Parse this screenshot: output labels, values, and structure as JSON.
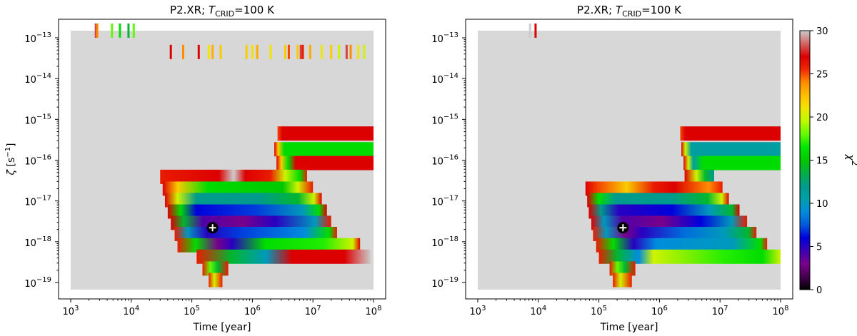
{
  "chart_data": [
    {
      "type": "heatmap",
      "title": "P2.XR; T_CRID=100 K",
      "title_main": "P2.XR; ",
      "title_sym": "T",
      "title_sub": "CRID",
      "title_tail": "=100 K",
      "xlabel": "Time [year]",
      "ylabel_sym": "ζ",
      "ylabel_unit": " [s",
      "ylabel_exp": "−1",
      "ylabel_close": "]",
      "x_scale": "log",
      "y_scale": "log",
      "xlim": [
        1000,
        100000000
      ],
      "ylim": [
        1e-19,
        1e-13
      ],
      "x_ticks": [
        {
          "base": "10",
          "exp": "3"
        },
        {
          "base": "10",
          "exp": "4"
        },
        {
          "base": "10",
          "exp": "5"
        },
        {
          "base": "10",
          "exp": "6"
        },
        {
          "base": "10",
          "exp": "7"
        },
        {
          "base": "10",
          "exp": "8"
        }
      ],
      "y_ticks": [
        {
          "base": "10",
          "exp": "−13"
        },
        {
          "base": "10",
          "exp": "−14"
        },
        {
          "base": "10",
          "exp": "−15"
        },
        {
          "base": "10",
          "exp": "−16"
        },
        {
          "base": "10",
          "exp": "−17"
        },
        {
          "base": "10",
          "exp": "−18"
        },
        {
          "base": "10",
          "exp": "−19"
        }
      ],
      "marker": {
        "x": 220000,
        "y": 2.2e-18,
        "symbol": "+"
      },
      "rows": [
        {
          "zeta": 1.5e-13,
          "t_start": 2500,
          "t_end": 12000,
          "style": "sparse",
          "stops": [
            [
              0,
              12
            ],
            [
              100,
              12
            ]
          ],
          "lines": [
            [
              2600,
              28
            ],
            [
              2750,
              24
            ],
            [
              4800,
              18
            ],
            [
              6500,
              16
            ],
            [
              9000,
              14
            ],
            [
              11000,
              18
            ]
          ]
        },
        {
          "zeta": 4.5e-14,
          "t_start": 40000,
          "t_end": 95000000,
          "style": "sparse",
          "stops": [
            [
              0,
              12
            ],
            [
              100,
              12
            ]
          ],
          "lines": [
            [
              45000,
              27
            ],
            [
              72000,
              24
            ],
            [
              130000,
              27
            ],
            [
              190000,
              21
            ],
            [
              220000,
              23
            ],
            [
              300000,
              22
            ],
            [
              800000,
              22
            ],
            [
              1000000,
              21
            ],
            [
              1200000,
              23
            ],
            [
              2000000,
              21
            ],
            [
              3500000,
              22
            ],
            [
              4000000,
              25
            ],
            [
              5600000,
              22
            ],
            [
              6300000,
              28
            ],
            [
              6800000,
              26
            ],
            [
              9000000,
              23
            ],
            [
              14000000,
              21
            ],
            [
              20000000,
              22
            ],
            [
              27000000,
              20
            ],
            [
              36000000,
              28
            ],
            [
              42000000,
              24
            ],
            [
              56000000,
              21
            ],
            [
              70000000,
              20
            ]
          ]
        },
        {
          "zeta": 4.5e-16,
          "t_start": 2600000,
          "t_end": 100000000,
          "stops": [
            [
              0,
              25
            ],
            [
              5,
              27
            ],
            [
              100,
              27
            ]
          ]
        },
        {
          "zeta": 1.85e-16,
          "t_start": 2300000,
          "t_end": 100000000,
          "stops": [
            [
              0,
              27
            ],
            [
              4,
              22
            ],
            [
              10,
              16
            ],
            [
              100,
              16
            ]
          ]
        },
        {
          "zeta": 8.5e-17,
          "t_start": 2500000,
          "t_end": 100000000,
          "stops": [
            [
              0,
              27
            ],
            [
              5,
              22
            ],
            [
              12,
              16
            ],
            [
              20,
              27
            ],
            [
              100,
              27
            ]
          ]
        },
        {
          "zeta": 3.9e-17,
          "t_start": 30000,
          "t_end": 8000000,
          "stops": [
            [
              0,
              26
            ],
            [
              40,
              27
            ],
            [
              50,
              30
            ],
            [
              58,
              27
            ],
            [
              75,
              26
            ],
            [
              85,
              20
            ],
            [
              95,
              16
            ],
            [
              100,
              26
            ]
          ]
        },
        {
          "zeta": 2e-17,
          "t_start": 33000,
          "t_end": 10000000,
          "stops": [
            [
              0,
              27
            ],
            [
              10,
              22
            ],
            [
              30,
              16
            ],
            [
              80,
              15
            ],
            [
              90,
              20
            ],
            [
              100,
              26
            ]
          ]
        },
        {
          "zeta": 1.05e-17,
          "t_start": 36000,
          "t_end": 14000000,
          "stops": [
            [
              0,
              27
            ],
            [
              8,
              20
            ],
            [
              20,
              12
            ],
            [
              60,
              12
            ],
            [
              85,
              14
            ],
            [
              95,
              20
            ],
            [
              100,
              27
            ]
          ]
        },
        {
          "zeta": 5.5e-18,
          "t_start": 40000,
          "t_end": 17000000,
          "stops": [
            [
              0,
              27
            ],
            [
              8,
              16
            ],
            [
              18,
              6
            ],
            [
              55,
              7
            ],
            [
              85,
              10
            ],
            [
              95,
              16
            ],
            [
              100,
              27
            ]
          ]
        },
        {
          "zeta": 2.9e-18,
          "t_start": 45000,
          "t_end": 20000000,
          "stops": [
            [
              0,
              27
            ],
            [
              8,
              14
            ],
            [
              20,
              4
            ],
            [
              45,
              3
            ],
            [
              65,
              5
            ],
            [
              90,
              10
            ],
            [
              100,
              26
            ]
          ]
        },
        {
          "zeta": 1.55e-18,
          "t_start": 52000,
          "t_end": 25000000,
          "stops": [
            [
              0,
              26
            ],
            [
              8,
              10
            ],
            [
              20,
              5
            ],
            [
              40,
              7
            ],
            [
              80,
              9
            ],
            [
              95,
              16
            ],
            [
              100,
              26
            ]
          ]
        },
        {
          "zeta": 8.2e-19,
          "t_start": 58000,
          "t_end": 60000000,
          "stops": [
            [
              0,
              26
            ],
            [
              10,
              16
            ],
            [
              22,
              3
            ],
            [
              30,
              5
            ],
            [
              48,
              16
            ],
            [
              80,
              17
            ],
            [
              96,
              20
            ],
            [
              100,
              27
            ]
          ]
        },
        {
          "zeta": 4.3e-19,
          "t_start": 120000,
          "t_end": 90000000,
          "stops": [
            [
              0,
              26
            ],
            [
              20,
              14
            ],
            [
              40,
              10
            ],
            [
              55,
              27
            ],
            [
              85,
              27
            ],
            [
              100,
              30
            ]
          ]
        },
        {
          "zeta": 2.2e-19,
          "t_start": 150000,
          "t_end": 400000,
          "stops": [
            [
              0,
              26
            ],
            [
              30,
              18
            ],
            [
              60,
              14
            ],
            [
              100,
              26
            ]
          ]
        },
        {
          "zeta": 1.15e-19,
          "t_start": 190000,
          "t_end": 320000,
          "stops": [
            [
              0,
              26
            ],
            [
              40,
              20
            ],
            [
              100,
              26
            ]
          ]
        }
      ]
    },
    {
      "type": "heatmap",
      "title": "P2.XR; T_CRID=100 K",
      "title_main": "P2.XR; ",
      "title_sym": "T",
      "title_sub": "CRID",
      "title_tail": "=100 K",
      "xlabel": "Time [year]",
      "x_scale": "log",
      "y_scale": "log",
      "xlim": [
        1000,
        100000000
      ],
      "ylim": [
        1e-19,
        1e-13
      ],
      "x_ticks": [
        {
          "base": "10",
          "exp": "3"
        },
        {
          "base": "10",
          "exp": "4"
        },
        {
          "base": "10",
          "exp": "5"
        },
        {
          "base": "10",
          "exp": "6"
        },
        {
          "base": "10",
          "exp": "7"
        },
        {
          "base": "10",
          "exp": "8"
        }
      ],
      "y_ticks": [
        {
          "base": "10",
          "exp": "−13"
        },
        {
          "base": "10",
          "exp": "−14"
        },
        {
          "base": "10",
          "exp": "−15"
        },
        {
          "base": "10",
          "exp": "−16"
        },
        {
          "base": "10",
          "exp": "−17"
        },
        {
          "base": "10",
          "exp": "−18"
        },
        {
          "base": "10",
          "exp": "−19"
        }
      ],
      "marker": {
        "x": 250000,
        "y": 2.2e-18,
        "symbol": "+"
      },
      "colorbar": {
        "label_sym": "χ",
        "label_exp": "2",
        "range": [
          0,
          30
        ],
        "ticks": [
          0,
          5,
          10,
          15,
          20,
          25,
          30
        ]
      },
      "rows": [
        {
          "zeta": 1.5e-13,
          "t_start": 7000,
          "t_end": 9500,
          "style": "sparse",
          "stops": [
            [
              0,
              12
            ],
            [
              100,
              12
            ]
          ],
          "lines": [
            [
              7300,
              30
            ],
            [
              9000,
              27
            ]
          ]
        },
        {
          "zeta": 4.5e-16,
          "t_start": 2200000,
          "t_end": 100000000,
          "stops": [
            [
              0,
              25
            ],
            [
              5,
              27
            ],
            [
              100,
              27
            ]
          ]
        },
        {
          "zeta": 1.85e-16,
          "t_start": 2300000,
          "t_end": 100000000,
          "stops": [
            [
              0,
              27
            ],
            [
              4,
              20
            ],
            [
              10,
              11
            ],
            [
              100,
              11
            ]
          ]
        },
        {
          "zeta": 8.5e-17,
          "t_start": 2500000,
          "t_end": 100000000,
          "stops": [
            [
              0,
              27
            ],
            [
              5,
              20
            ],
            [
              10,
              11
            ],
            [
              20,
              16
            ],
            [
              100,
              16
            ]
          ]
        },
        {
          "zeta": 3.9e-17,
          "t_start": 2600000,
          "t_end": 8000000,
          "stops": [
            [
              0,
              27
            ],
            [
              40,
              20
            ],
            [
              70,
              14
            ],
            [
              100,
              12
            ]
          ]
        },
        {
          "zeta": 2e-17,
          "t_start": 60000,
          "t_end": 11000000,
          "stops": [
            [
              0,
              27
            ],
            [
              10,
              25
            ],
            [
              30,
              22
            ],
            [
              50,
              26
            ],
            [
              65,
              27
            ],
            [
              90,
              24
            ],
            [
              100,
              26
            ]
          ]
        },
        {
          "zeta": 1.05e-17,
          "t_start": 64000,
          "t_end": 14000000,
          "stops": [
            [
              0,
              27
            ],
            [
              8,
              16
            ],
            [
              20,
              12
            ],
            [
              60,
              12
            ],
            [
              85,
              14
            ],
            [
              95,
              20
            ],
            [
              100,
              27
            ]
          ]
        },
        {
          "zeta": 5.5e-18,
          "t_start": 68000,
          "t_end": 21000000,
          "stops": [
            [
              0,
              27
            ],
            [
              8,
              12
            ],
            [
              20,
              5
            ],
            [
              55,
              6
            ],
            [
              80,
              10
            ],
            [
              95,
              14
            ],
            [
              100,
              27
            ]
          ]
        },
        {
          "zeta": 2.9e-18,
          "t_start": 75000,
          "t_end": 28000000,
          "stops": [
            [
              0,
              27
            ],
            [
              8,
              10
            ],
            [
              20,
              4
            ],
            [
              45,
              3
            ],
            [
              70,
              6
            ],
            [
              90,
              10
            ],
            [
              100,
              26
            ]
          ]
        },
        {
          "zeta": 1.55e-18,
          "t_start": 80000,
          "t_end": 40000000,
          "stops": [
            [
              0,
              26
            ],
            [
              8,
              10
            ],
            [
              20,
              3
            ],
            [
              30,
              5
            ],
            [
              55,
              8
            ],
            [
              80,
              10
            ],
            [
              95,
              14
            ],
            [
              100,
              26
            ]
          ]
        },
        {
          "zeta": 8.2e-19,
          "t_start": 90000,
          "t_end": 60000000,
          "stops": [
            [
              0,
              26
            ],
            [
              10,
              16
            ],
            [
              22,
              5
            ],
            [
              35,
              9
            ],
            [
              80,
              10
            ],
            [
              96,
              16
            ],
            [
              100,
              26
            ]
          ]
        },
        {
          "zeta": 4.3e-19,
          "t_start": 100000,
          "t_end": 100000000,
          "stops": [
            [
              0,
              26
            ],
            [
              10,
              14
            ],
            [
              22,
              9
            ],
            [
              30,
              20
            ],
            [
              70,
              17
            ],
            [
              90,
              16
            ],
            [
              100,
              20
            ]
          ]
        },
        {
          "zeta": 2.2e-19,
          "t_start": 150000,
          "t_end": 400000,
          "stops": [
            [
              0,
              26
            ],
            [
              30,
              18
            ],
            [
              60,
              14
            ],
            [
              100,
              26
            ]
          ]
        },
        {
          "zeta": 1.15e-19,
          "t_start": 170000,
          "t_end": 350000,
          "stops": [
            [
              0,
              26
            ],
            [
              40,
              20
            ],
            [
              100,
              26
            ]
          ]
        }
      ]
    }
  ]
}
